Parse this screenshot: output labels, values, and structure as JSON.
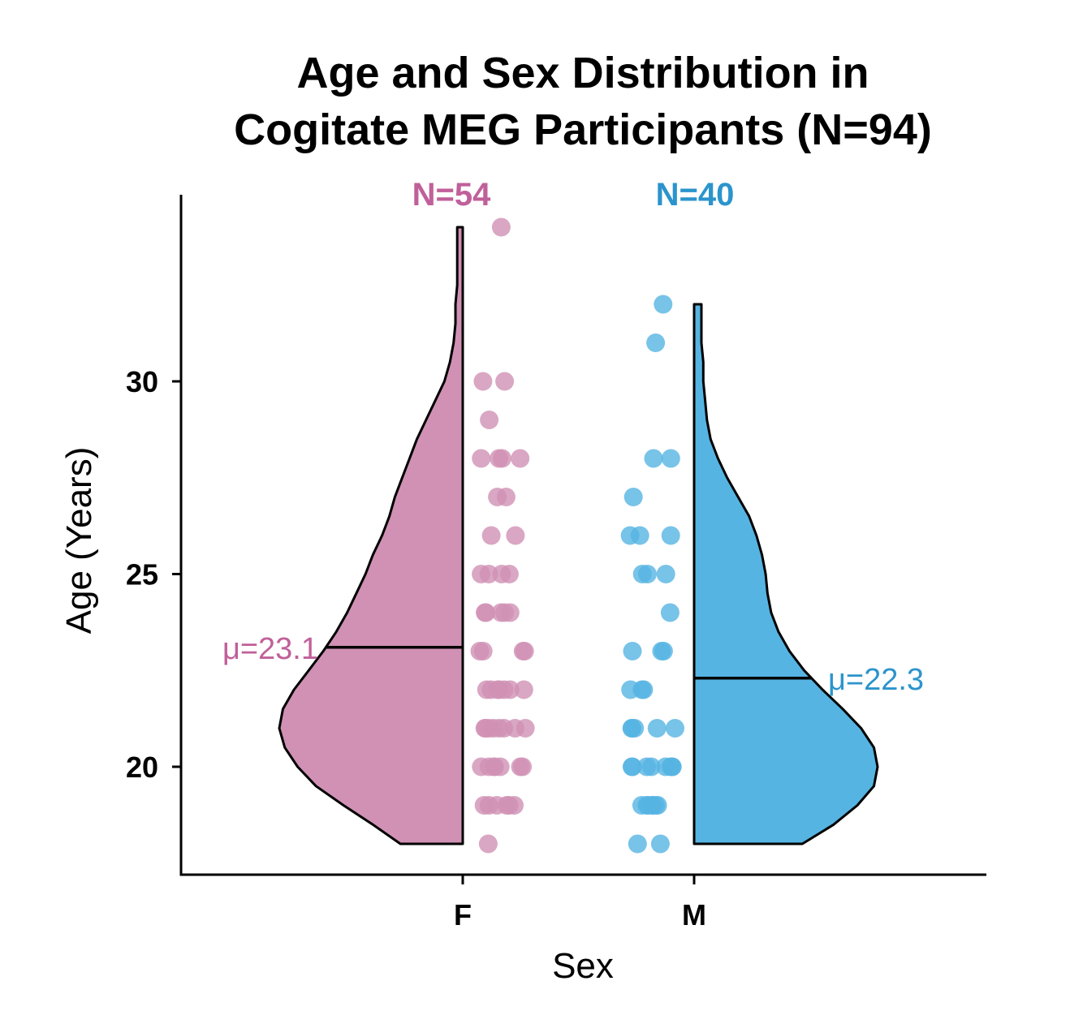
{
  "chart_data": {
    "type": "violin",
    "title_lines": [
      "Age and Sex Distribution in",
      "Cogitate MEG Participants (N=94)"
    ],
    "xlabel": "Sex",
    "ylabel": "Age (Years)",
    "categories": [
      "F",
      "M"
    ],
    "y_ticks": [
      20,
      25,
      30
    ],
    "ylim": [
      17.3,
      34.8
    ],
    "grid": false,
    "groups": [
      {
        "category": "F",
        "color": "#D091B4",
        "label_color": "#C0609A",
        "n_label": "N=54",
        "mean": 23.1,
        "mean_label": "μ=23.1",
        "min": 18,
        "max": 34,
        "density": [
          [
            18,
            0.34
          ],
          [
            18.5,
            0.49
          ],
          [
            19,
            0.65
          ],
          [
            19.5,
            0.8
          ],
          [
            20,
            0.9
          ],
          [
            20.5,
            0.97
          ],
          [
            21,
            1.0
          ],
          [
            21.5,
            0.98
          ],
          [
            22,
            0.92
          ],
          [
            22.5,
            0.84
          ],
          [
            23,
            0.76
          ],
          [
            23.5,
            0.69
          ],
          [
            24,
            0.63
          ],
          [
            24.5,
            0.58
          ],
          [
            25,
            0.53
          ],
          [
            25.5,
            0.49
          ],
          [
            26,
            0.44
          ],
          [
            26.5,
            0.4
          ],
          [
            27,
            0.37
          ],
          [
            27.5,
            0.33
          ],
          [
            28,
            0.29
          ],
          [
            28.5,
            0.25
          ],
          [
            29,
            0.2
          ],
          [
            29.5,
            0.15
          ],
          [
            30,
            0.1
          ],
          [
            30.5,
            0.07
          ],
          [
            31,
            0.05
          ],
          [
            31.5,
            0.04
          ],
          [
            32,
            0.04
          ],
          [
            32.5,
            0.03
          ],
          [
            33,
            0.03
          ],
          [
            33.5,
            0.03
          ],
          [
            34,
            0.03
          ]
        ],
        "ages": [
          34,
          30,
          30,
          29,
          28,
          28,
          28,
          28,
          27,
          27,
          26,
          26,
          25,
          25,
          25,
          25,
          24,
          24,
          24,
          24,
          24,
          23,
          23,
          23,
          23,
          22,
          22,
          22,
          22,
          22,
          22,
          22,
          21,
          21,
          21,
          21,
          21,
          21,
          21,
          21,
          20,
          20,
          20,
          20,
          20,
          20,
          20,
          19,
          19,
          19,
          19,
          19,
          19,
          18
        ]
      },
      {
        "category": "M",
        "color": "#56B4E2",
        "label_color": "#2C94CC",
        "n_label": "N=40",
        "mean": 22.3,
        "mean_label": "μ=22.3",
        "min": 18,
        "max": 32,
        "density": [
          [
            18,
            0.59
          ],
          [
            18.5,
            0.76
          ],
          [
            19,
            0.89
          ],
          [
            19.5,
            0.98
          ],
          [
            20,
            1.0
          ],
          [
            20.5,
            0.98
          ],
          [
            21,
            0.91
          ],
          [
            21.5,
            0.81
          ],
          [
            22,
            0.7
          ],
          [
            22.5,
            0.6
          ],
          [
            23,
            0.52
          ],
          [
            23.5,
            0.46
          ],
          [
            24,
            0.42
          ],
          [
            24.5,
            0.4
          ],
          [
            25,
            0.39
          ],
          [
            25.5,
            0.37
          ],
          [
            26,
            0.34
          ],
          [
            26.5,
            0.3
          ],
          [
            27,
            0.24
          ],
          [
            27.5,
            0.18
          ],
          [
            28,
            0.13
          ],
          [
            28.5,
            0.09
          ],
          [
            29,
            0.07
          ],
          [
            29.5,
            0.06
          ],
          [
            30,
            0.05
          ],
          [
            30.5,
            0.05
          ],
          [
            31,
            0.04
          ],
          [
            31.5,
            0.04
          ],
          [
            32,
            0.04
          ]
        ],
        "ages": [
          32,
          31,
          28,
          28,
          27,
          26,
          26,
          26,
          25,
          25,
          25,
          24,
          23,
          23,
          23,
          22,
          22,
          22,
          21,
          21,
          21,
          21,
          21,
          20,
          20,
          20,
          20,
          20,
          20,
          20,
          20,
          19,
          19,
          19,
          19,
          19,
          19,
          19,
          18,
          18
        ]
      }
    ]
  }
}
